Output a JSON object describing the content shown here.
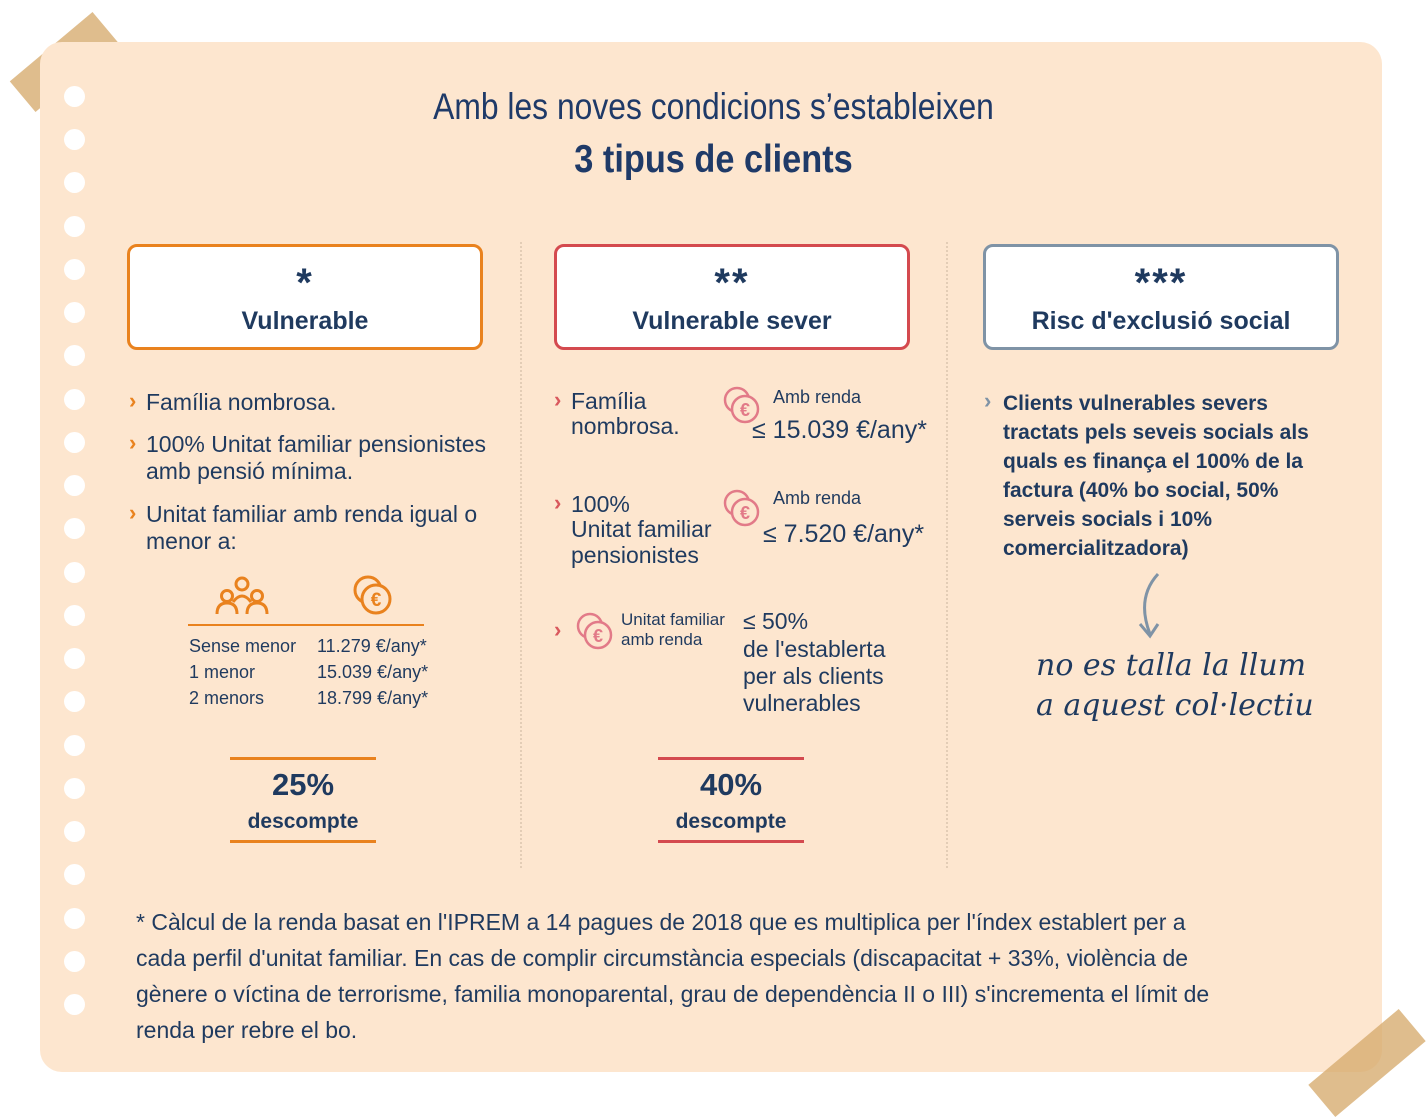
{
  "title": {
    "line1": "Amb les noves condicions s’estableixen",
    "line2": "3 tipus de clients"
  },
  "colors": {
    "background": "#fde6cf",
    "navy": "#1f3a5f",
    "orange": "#e9821e",
    "red": "#d44a4f",
    "slate": "#7f93a6",
    "tape": "#d6ab6d"
  },
  "col1": {
    "stars": "*",
    "label": "Vulnerable",
    "items": [
      "Família nombrosa.",
      "100% Unitat familiar pensionistes",
      "amb pensió mínima.",
      "Unitat familiar amb renda igual o",
      "menor a:"
    ],
    "icons": [
      "people-icon",
      "euro-coins-icon"
    ],
    "table": [
      {
        "label": "Sense menor",
        "value": "11.279 €/any*"
      },
      {
        "label": "1 menor",
        "value": "15.039 €/any*"
      },
      {
        "label": "2 menors",
        "value": "18.799 €/any*"
      }
    ],
    "discount_pct": "25%",
    "discount_label": "descompte"
  },
  "col2": {
    "stars": "**",
    "label": "Vulnerable sever",
    "item1": {
      "line1": "Família",
      "line2": "nombrosa.",
      "renda": "Amb renda",
      "value": "≤ 15.039 €/any*"
    },
    "item2": {
      "line1": "100%",
      "line2": "Unitat familiar",
      "line3": "pensionistes",
      "renda": "Amb renda",
      "value": "≤ 7.520 €/any*"
    },
    "item3": {
      "small1": "Unitat familiar",
      "small2": "amb renda",
      "line1": "≤ 50%",
      "line2": "de l'establerta",
      "line3": "per als clients",
      "line4": "vulnerables"
    },
    "discount_pct": "40%",
    "discount_label": "descompte"
  },
  "col3": {
    "stars": "***",
    "label": "Risc d'exclusió social",
    "text": [
      "Clients vulnerables severs",
      "tractats pels seveis socials als",
      "quals es finança el 100% de la",
      "factura (40% bo social, 50%",
      "serveis socials i 10%",
      "comercialitzadora)"
    ],
    "handwritten": [
      "no es talla la llum",
      "a aquest col·lectiu"
    ]
  },
  "footnote": [
    "* Càlcul de la renda basat en l'IPREM a 14 pagues de 2018 que es multiplica per l'índex establert per a",
    "cada perfil d'unitat familiar. En cas de complir circumstància especials (discapacitat + 33%, violència de",
    "gènere o víctina de terrorisme, familia monoparental, grau de dependència II o III) s'incrementa el límit de",
    "renda per rebre el bo."
  ]
}
